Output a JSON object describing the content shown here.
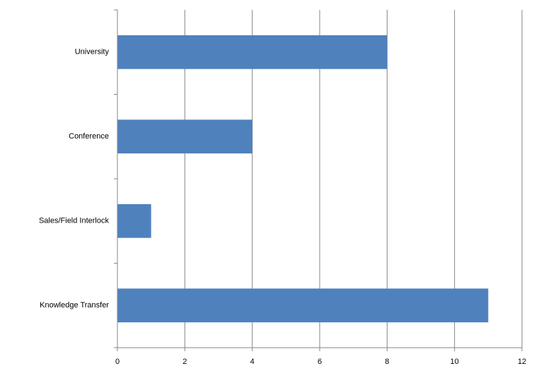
{
  "chart_data": {
    "type": "bar",
    "orientation": "horizontal",
    "categories": [
      "University",
      "Conference",
      "Sales/Field Interlock",
      "Knowledge Transfer"
    ],
    "values": [
      8,
      4,
      1,
      11
    ],
    "color": "#4f81bd",
    "xlim": [
      0,
      12
    ],
    "xticks": [
      0,
      2,
      4,
      6,
      8,
      10,
      12
    ],
    "grid": true
  }
}
